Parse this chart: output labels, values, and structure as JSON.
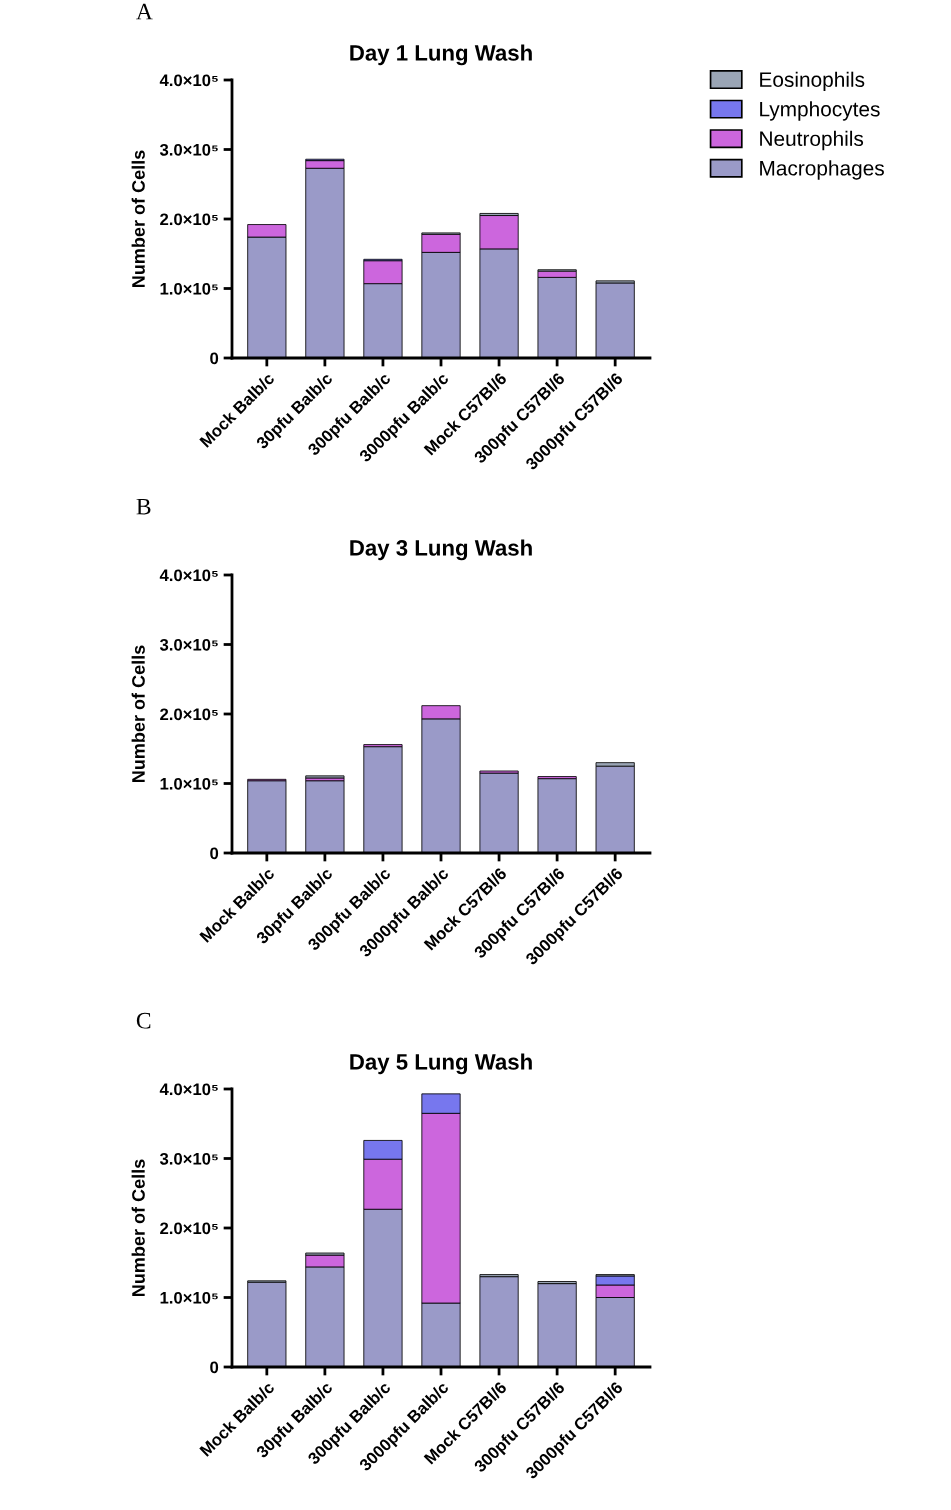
{
  "chart_data": [
    {
      "type": "bar",
      "stacked": true,
      "title": "Day 1 Lung Wash",
      "ylabel": "Number of Cells",
      "annotations": [
        "A"
      ],
      "legend": "right",
      "categories": [
        "Mock Balb/c",
        "30pfu Balb/c",
        "300pfu Balb/c",
        "3000pfu Balb/c",
        "Mock C57Bl/6",
        "300pfu C57Bl/6",
        "3000pfu C57Bl/6"
      ],
      "ylim": [
        0,
        400000
      ],
      "yticks": [
        0,
        {
          "value": 100000,
          "label": "1.0×10⁵"
        },
        {
          "value": 200000,
          "label": "2.0×10⁵"
        },
        {
          "value": 300000,
          "label": "3.0×10⁵"
        },
        {
          "value": 400000,
          "label": "4.0×10⁵"
        }
      ],
      "series": [
        {
          "name": "Macrophages",
          "color": "#9a9ac8",
          "values": [
            174000,
            273000,
            107000,
            152000,
            157000,
            116000,
            108000
          ]
        },
        {
          "name": "Neutrophils",
          "color": "#cc66dd",
          "values": [
            18000,
            11000,
            33000,
            26000,
            48000,
            9000,
            null
          ]
        },
        {
          "name": "Lymphocytes",
          "color": "#7777ee",
          "values": [
            null,
            2000,
            2000,
            null,
            null,
            null,
            null
          ]
        },
        {
          "name": "Eosinophils",
          "color": "#9aa5b5",
          "values": [
            null,
            null,
            null,
            2000,
            3000,
            2000,
            3000
          ]
        }
      ]
    },
    {
      "type": "bar",
      "stacked": true,
      "title": "Day 3 Lung Wash",
      "ylabel": "Number of Cells",
      "annotations": [
        "B"
      ],
      "categories": [
        "Mock Balb/c",
        "30pfu Balb/c",
        "300pfu Balb/c",
        "3000pfu Balb/c",
        "Mock C57Bl/6",
        "300pfu C57Bl/6",
        "3000pfu C57Bl/6"
      ],
      "ylim": [
        0,
        400000
      ],
      "yticks": [
        0,
        {
          "value": 100000,
          "label": "1.0×10⁵"
        },
        {
          "value": 200000,
          "label": "2.0×10⁵"
        },
        {
          "value": 300000,
          "label": "3.0×10⁵"
        },
        {
          "value": 400000,
          "label": "4.0×10⁵"
        }
      ],
      "series": [
        {
          "color": "#9a9ac8",
          "values": [
            104000,
            104000,
            153000,
            193000,
            115000,
            107000,
            125000
          ]
        },
        {
          "color": "#cc66dd",
          "values": [
            2000,
            4000,
            3000,
            19000,
            3000,
            3000,
            null
          ]
        },
        {
          "color": "#7777ee",
          "values": [
            null,
            null,
            null,
            null,
            null,
            null,
            null
          ]
        },
        {
          "color": "#9aa5b5",
          "values": [
            null,
            3000,
            null,
            null,
            null,
            null,
            5000
          ]
        }
      ]
    },
    {
      "type": "bar",
      "stacked": true,
      "title": "Day 5 Lung Wash",
      "ylabel": "Number of Cells",
      "annotations": [
        "C"
      ],
      "categories": [
        "Mock Balb/c",
        "30pfu Balb/c",
        "300pfu Balb/c",
        "3000pfu Balb/c",
        "Mock C57Bl/6",
        "300pfu C57Bl/6",
        "3000pfu C57Bl/6"
      ],
      "ylim": [
        0,
        400000
      ],
      "yticks": [
        0,
        {
          "value": 100000,
          "label": "1.0×10⁵"
        },
        {
          "value": 200000,
          "label": "2.0×10⁵"
        },
        {
          "value": 300000,
          "label": "3.0×10⁵"
        },
        {
          "value": 400000,
          "label": "4.0×10⁵"
        }
      ],
      "series": [
        {
          "color": "#9a9ac8",
          "values": [
            122000,
            144000,
            227000,
            92000,
            130000,
            120000,
            100000
          ]
        },
        {
          "color": "#cc66dd",
          "values": [
            null,
            17000,
            72000,
            273000,
            null,
            null,
            18000
          ]
        },
        {
          "color": "#7777ee",
          "values": [
            null,
            null,
            27000,
            28000,
            null,
            null,
            13000
          ]
        },
        {
          "color": "#9aa5b5",
          "values": [
            2000,
            3000,
            null,
            null,
            3000,
            3000,
            2000
          ]
        }
      ]
    }
  ]
}
